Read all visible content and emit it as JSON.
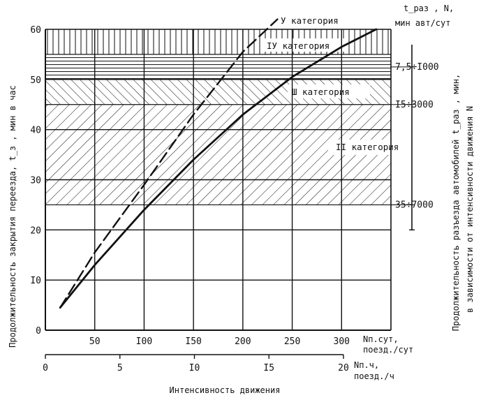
{
  "chart_data": {
    "type": "line",
    "ylabel": "Продолжительность закрытия переезда, t_з , мин в час",
    "xlabel": "Интенсивность движения",
    "right_label_line1": "Продолжительность разъезда автомобилей  t_раз , мин,",
    "right_label_line2": "в зависимости от интенсивности движения N",
    "x_axis_top": {
      "ticks": [
        50,
        100,
        150,
        200,
        250,
        300
      ],
      "tick_labels": [
        "50",
        "I00",
        "I50",
        "200",
        "250",
        "300"
      ],
      "unit_line1": "Nп.сут,",
      "unit_line2": "поезд./сут",
      "range": [
        0,
        350
      ]
    },
    "x_axis_bottom": {
      "ticks": [
        0,
        5,
        10,
        15,
        20
      ],
      "tick_labels": [
        "0",
        "5",
        "I0",
        "I5",
        "20"
      ],
      "unit_line1": "Nп.ч,",
      "unit_line2": "поезд./ч",
      "range": [
        0,
        20
      ]
    },
    "y_axis": {
      "ticks": [
        0,
        10,
        20,
        30,
        40,
        50,
        60
      ],
      "tick_labels": [
        "0",
        "I0",
        "20",
        "30",
        "40",
        "50",
        "60"
      ],
      "range": [
        0,
        60
      ]
    },
    "right_axis": {
      "title_line1": "t_раз , N,",
      "title_line2": "мин авт/сут",
      "ticks": [
        {
          "y": 52.5,
          "label": "7,5÷I000"
        },
        {
          "y": 45,
          "label": "I5÷3000"
        },
        {
          "y": 25,
          "label": "35÷7000"
        }
      ],
      "range": [
        20,
        60
      ]
    },
    "bands": [
      {
        "name": "У категория",
        "from": 55,
        "to": 60,
        "hatch": "vertical"
      },
      {
        "name": "IУ категория",
        "from": 50,
        "to": 55,
        "hatch": "horizontal"
      },
      {
        "name": "Ш категория",
        "from": 45,
        "to": 50,
        "hatch": "backslash"
      },
      {
        "name": "II категория",
        "from": 25,
        "to": 45,
        "hatch": "slash"
      }
    ],
    "series": [
      {
        "style": "solid",
        "x": [
          15,
          50,
          100,
          150,
          200,
          250,
          300,
          335
        ],
        "y": [
          4.5,
          13,
          24,
          34,
          43,
          50.5,
          56.5,
          60
        ]
      },
      {
        "style": "dashed",
        "x": [
          15,
          50,
          100,
          150,
          200,
          235
        ],
        "y": [
          4.5,
          15.5,
          29,
          43,
          55.5,
          62
        ]
      }
    ]
  }
}
